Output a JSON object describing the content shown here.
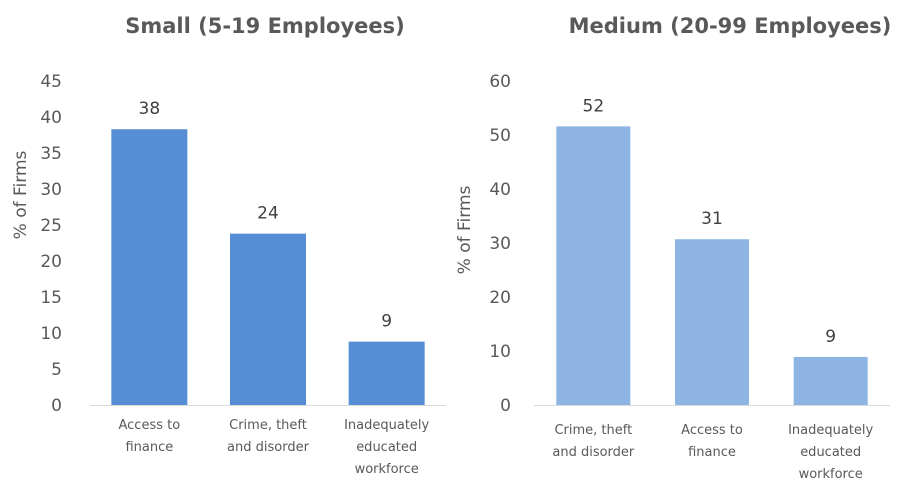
{
  "chart_data": [
    {
      "type": "bar",
      "title": "Small (5-19 Employees)",
      "ylabel": "% of Firms",
      "xlabel": "",
      "categories": [
        [
          "Access to",
          "finance"
        ],
        [
          "Crime, theft",
          "and disorder"
        ],
        [
          "Inadequately",
          "educated",
          "workforce"
        ]
      ],
      "values": [
        38,
        24,
        9
      ],
      "bar_values": [
        38.3,
        23.8,
        8.8
      ],
      "ylim": [
        0,
        45
      ],
      "yticks": [
        0,
        5,
        10,
        15,
        20,
        25,
        30,
        35,
        40,
        45
      ],
      "grid": false,
      "color": "#558ED5"
    },
    {
      "type": "bar",
      "title": "Medium (20-99 Employees)",
      "ylabel": "% of Firms",
      "xlabel": "",
      "categories": [
        [
          "Crime, theft",
          "and disorder"
        ],
        [
          "Access to",
          "finance"
        ],
        [
          "Inadequately",
          "educated",
          "workforce"
        ]
      ],
      "values": [
        52,
        31,
        9
      ],
      "bar_values": [
        51.6,
        30.7,
        8.9
      ],
      "ylim": [
        0,
        60
      ],
      "yticks": [
        0,
        10,
        20,
        30,
        40,
        50,
        60
      ],
      "grid": false,
      "color": "#8EB4E3"
    }
  ]
}
